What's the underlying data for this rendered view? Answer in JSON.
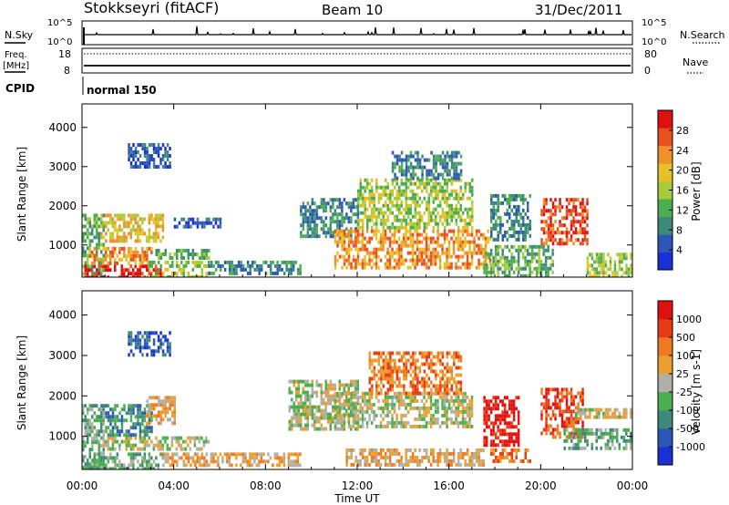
{
  "header": {
    "station": "Stokkseyri (fitACF)",
    "beam": "Beam 10",
    "date": "31/Dec/2011"
  },
  "noise_panel": {
    "left_label": "N.Sky",
    "right_label": "N.Search",
    "scale_top": "10^5",
    "scale_bottom": "10^0"
  },
  "freq_panel": {
    "left_label": "Freq.",
    "unit_label": "[MHz]",
    "left_ticks": [
      "18",
      "8"
    ],
    "right_label": "Nave",
    "right_ticks": [
      "80",
      "0"
    ]
  },
  "cpid": {
    "label": "CPID",
    "value": "normal 150"
  },
  "x_axis": {
    "title": "Time UT",
    "ticks": [
      "00:00",
      "04:00",
      "08:00",
      "12:00",
      "16:00",
      "20:00",
      "00:00"
    ]
  },
  "colors": {
    "power": [
      "#1a2fd6",
      "#2c56b8",
      "#3e8a7a",
      "#4cae50",
      "#a7cc39",
      "#e6c228",
      "#f0902a",
      "#e8501f",
      "#e01010"
    ],
    "velocity": [
      "#1a2fd6",
      "#2c56b8",
      "#3e8a7a",
      "#4cae50",
      "#b0b0a8",
      "#e9a030",
      "#f07a20",
      "#e83a14",
      "#e01010"
    ]
  },
  "chart_data": [
    {
      "type": "heatmap",
      "title": "",
      "xlabel": "Time UT",
      "ylabel": "Slant Range [km]",
      "xlim": [
        0,
        24
      ],
      "ylim": [
        180,
        4600
      ],
      "y_ticks": [
        "4000",
        "3000",
        "2000",
        "1000"
      ],
      "colorbar": {
        "label": "Power [dB]",
        "ticks": [
          "28",
          "24",
          "20",
          "16",
          "12",
          "8",
          "4"
        ],
        "range": [
          0,
          32
        ]
      },
      "regions": [
        {
          "t0": 0.0,
          "t1": 0.9,
          "r0": 200,
          "r1": 1800,
          "level": 3
        },
        {
          "t0": 0.1,
          "t1": 3.5,
          "r0": 200,
          "r1": 500,
          "level": 8
        },
        {
          "t0": 0.3,
          "t1": 3.0,
          "r0": 550,
          "r1": 950,
          "level": 6
        },
        {
          "t0": 0.8,
          "t1": 3.5,
          "r0": 1100,
          "r1": 1800,
          "level": 5
        },
        {
          "t0": 2.8,
          "t1": 5.5,
          "r0": 200,
          "r1": 600,
          "level": 4
        },
        {
          "t0": 3.2,
          "t1": 5.5,
          "r0": 700,
          "r1": 900,
          "level": 3
        },
        {
          "t0": 2.0,
          "t1": 3.8,
          "r0": 3000,
          "r1": 3600,
          "level": 1
        },
        {
          "t0": 5.5,
          "t1": 9.5,
          "r0": 300,
          "r1": 600,
          "level": 2
        },
        {
          "t0": 4.0,
          "t1": 6.0,
          "r0": 1500,
          "r1": 1700,
          "level": 1
        },
        {
          "t0": 9.5,
          "t1": 12.0,
          "r0": 1200,
          "r1": 2200,
          "level": 2
        },
        {
          "t0": 11.0,
          "t1": 17.8,
          "r0": 400,
          "r1": 1400,
          "level": 6
        },
        {
          "t0": 12.0,
          "t1": 17.0,
          "r0": 1400,
          "r1": 2700,
          "level": 4
        },
        {
          "t0": 13.5,
          "t1": 16.5,
          "r0": 2700,
          "r1": 3400,
          "level": 2
        },
        {
          "t0": 17.5,
          "t1": 20.5,
          "r0": 200,
          "r1": 1000,
          "level": 3
        },
        {
          "t0": 17.8,
          "t1": 19.5,
          "r0": 1100,
          "r1": 2300,
          "level": 2
        },
        {
          "t0": 20.0,
          "t1": 22.0,
          "r0": 1000,
          "r1": 2200,
          "level": 7
        },
        {
          "t0": 22.0,
          "t1": 24.0,
          "r0": 200,
          "r1": 800,
          "level": 4
        }
      ]
    },
    {
      "type": "heatmap",
      "title": "",
      "xlabel": "Time UT",
      "ylabel": "Slant Range [km]",
      "xlim": [
        0,
        24
      ],
      "ylim": [
        180,
        4600
      ],
      "y_ticks": [
        "4000",
        "3000",
        "2000",
        "1000"
      ],
      "colorbar": {
        "label": "Velocity [m s-1]",
        "ticks": [
          "1000",
          "500",
          "100",
          "25",
          "-25",
          "-100",
          "-500",
          "-1000"
        ]
      },
      "regions": [
        {
          "t0": 0.0,
          "t1": 0.9,
          "r0": 200,
          "r1": 1800,
          "level": 3
        },
        {
          "t0": 0.6,
          "t1": 5.5,
          "r0": 650,
          "r1": 1000,
          "level": 4
        },
        {
          "t0": 0.5,
          "t1": 3.5,
          "r0": 200,
          "r1": 600,
          "level": 3
        },
        {
          "t0": 1.0,
          "t1": 3.0,
          "r0": 1000,
          "r1": 1800,
          "level": 2
        },
        {
          "t0": 2.8,
          "t1": 4.0,
          "r0": 1300,
          "r1": 2000,
          "level": 5
        },
        {
          "t0": 3.5,
          "t1": 9.5,
          "r0": 250,
          "r1": 600,
          "level": 5
        },
        {
          "t0": 2.0,
          "t1": 3.8,
          "r0": 3000,
          "r1": 3600,
          "level": 1
        },
        {
          "t0": 9.0,
          "t1": 12.0,
          "r0": 1200,
          "r1": 2400,
          "level": 4
        },
        {
          "t0": 11.0,
          "t1": 17.0,
          "r0": 1200,
          "r1": 2100,
          "level": 4
        },
        {
          "t0": 11.5,
          "t1": 17.5,
          "r0": 300,
          "r1": 700,
          "level": 5
        },
        {
          "t0": 12.5,
          "t1": 16.5,
          "r0": 2100,
          "r1": 3100,
          "level": 6
        },
        {
          "t0": 17.5,
          "t1": 19.0,
          "r0": 800,
          "r1": 2000,
          "level": 8
        },
        {
          "t0": 17.8,
          "t1": 19.5,
          "r0": 350,
          "r1": 700,
          "level": 6
        },
        {
          "t0": 20.0,
          "t1": 21.8,
          "r0": 1000,
          "r1": 2200,
          "level": 7
        },
        {
          "t0": 21.0,
          "t1": 24.0,
          "r0": 700,
          "r1": 1200,
          "level": 3
        },
        {
          "t0": 21.5,
          "t1": 24.0,
          "r0": 1500,
          "r1": 1700,
          "level": 4
        }
      ]
    }
  ]
}
